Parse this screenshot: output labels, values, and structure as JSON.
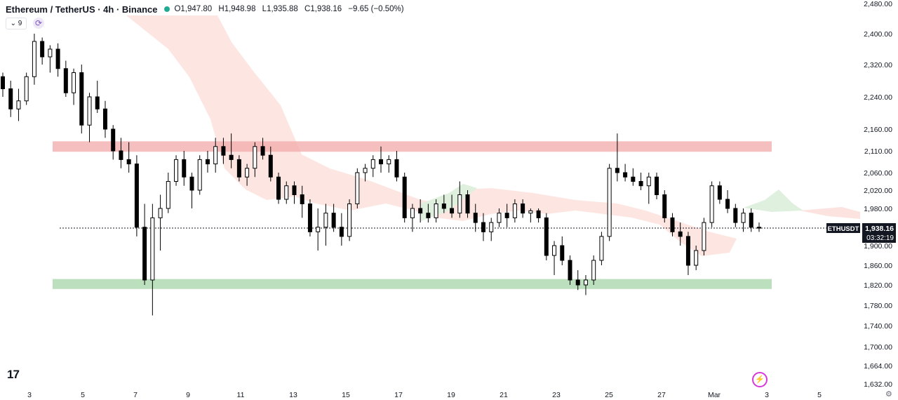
{
  "header": {
    "symbol": "Ethereum / TetherUS · 4h · Binance",
    "ohlc": {
      "open": "O1,947.80",
      "high": "H1,948.98",
      "low": "L1,935.88",
      "close": "C1,938.16",
      "change": "−9.65 (−0.50%)"
    }
  },
  "toolbar": {
    "indicator_count": "9"
  },
  "icons": {
    "collapse": "chevron-down-icon",
    "refresh": "refresh-icon",
    "logo": "tradingview-logo",
    "alert": "lightning-icon",
    "settings": "gear-icon"
  },
  "colors": {
    "up": "#ffffff",
    "down": "#000000",
    "resistance": "#f2a9a9",
    "support": "#a5d6a7",
    "cloud_bear": "#fde3df",
    "cloud_bull": "#dff0df",
    "price_label": "#131722"
  },
  "price_label": {
    "symbol": "ETHUSDT",
    "price": "1,938.16",
    "countdown": "03:32:19"
  },
  "chart_data": {
    "type": "candlestick",
    "y_ticks": [
      "2,480.00",
      "2,400.00",
      "2,320.00",
      "2,240.00",
      "2,160.00",
      "2,110.00",
      "2,060.00",
      "2,020.00",
      "1,980.00",
      "1,938.16",
      "1,900.00",
      "1,860.00",
      "1,820.00",
      "1,780.00",
      "1,740.00",
      "1,700.00",
      "1,664.00",
      "1,632.00"
    ],
    "x_ticks": [
      "3",
      "5",
      "7",
      "9",
      "11",
      "13",
      "15",
      "17",
      "19",
      "21",
      "23",
      "25",
      "27",
      "Mar",
      "3",
      "5"
    ],
    "current_price": 1938.16,
    "zones": [
      {
        "kind": "resistance",
        "from": 2108,
        "to": 2132
      },
      {
        "kind": "support",
        "from": 1812,
        "to": 1832
      }
    ],
    "candles": [
      [
        2290,
        2300,
        2240,
        2260
      ],
      [
        2260,
        2280,
        2190,
        2210
      ],
      [
        2210,
        2260,
        2180,
        2230
      ],
      [
        2230,
        2300,
        2220,
        2290
      ],
      [
        2290,
        2400,
        2270,
        2380
      ],
      [
        2380,
        2390,
        2320,
        2340
      ],
      [
        2340,
        2370,
        2300,
        2360
      ],
      [
        2360,
        2375,
        2290,
        2310
      ],
      [
        2310,
        2330,
        2240,
        2250
      ],
      [
        2250,
        2310,
        2220,
        2300
      ],
      [
        2300,
        2320,
        2150,
        2170
      ],
      [
        2170,
        2250,
        2130,
        2240
      ],
      [
        2240,
        2280,
        2200,
        2210
      ],
      [
        2210,
        2230,
        2140,
        2160
      ],
      [
        2160,
        2170,
        2090,
        2110
      ],
      [
        2110,
        2140,
        2070,
        2090
      ],
      [
        2090,
        2130,
        2060,
        2080
      ],
      [
        2080,
        2100,
        1920,
        1940
      ],
      [
        1940,
        1990,
        1820,
        1830
      ],
      [
        1830,
        1990,
        1760,
        1960
      ],
      [
        1960,
        2010,
        1890,
        1980
      ],
      [
        1980,
        2060,
        1970,
        2040
      ],
      [
        2040,
        2100,
        2030,
        2090
      ],
      [
        2090,
        2110,
        2030,
        2050
      ],
      [
        2050,
        2060,
        1980,
        2020
      ],
      [
        2020,
        2100,
        2010,
        2090
      ],
      [
        2090,
        2110,
        2060,
        2080
      ],
      [
        2080,
        2140,
        2060,
        2120
      ],
      [
        2120,
        2140,
        2080,
        2100
      ],
      [
        2100,
        2150,
        2070,
        2090
      ],
      [
        2090,
        2100,
        2040,
        2050
      ],
      [
        2050,
        2080,
        2030,
        2070
      ],
      [
        2070,
        2130,
        2050,
        2120
      ],
      [
        2120,
        2140,
        2090,
        2100
      ],
      [
        2100,
        2120,
        2040,
        2050
      ],
      [
        2050,
        2060,
        1990,
        2000
      ],
      [
        2000,
        2040,
        1990,
        2030
      ],
      [
        2030,
        2040,
        1990,
        2010
      ],
      [
        2010,
        2030,
        1960,
        1990
      ],
      [
        1990,
        2000,
        1920,
        1930
      ],
      [
        1930,
        1980,
        1890,
        1940
      ],
      [
        1940,
        1990,
        1900,
        1970
      ],
      [
        1970,
        1990,
        1930,
        1940
      ],
      [
        1940,
        1970,
        1900,
        1920
      ],
      [
        1920,
        2000,
        1910,
        1990
      ],
      [
        1990,
        2070,
        1980,
        2060
      ],
      [
        2060,
        2080,
        2040,
        2070
      ],
      [
        2070,
        2100,
        2050,
        2090
      ],
      [
        2090,
        2120,
        2060,
        2080
      ],
      [
        2080,
        2100,
        2060,
        2090
      ],
      [
        2090,
        2110,
        2040,
        2050
      ],
      [
        2050,
        2060,
        1950,
        1960
      ],
      [
        1960,
        1990,
        1930,
        1980
      ],
      [
        1980,
        2000,
        1950,
        1970
      ],
      [
        1970,
        1990,
        1950,
        1960
      ],
      [
        1960,
        2000,
        1950,
        1990
      ],
      [
        1990,
        2010,
        1970,
        1980
      ],
      [
        1980,
        2010,
        1960,
        1970
      ],
      [
        1970,
        2040,
        1960,
        2010
      ],
      [
        2010,
        2020,
        1960,
        1970
      ],
      [
        1970,
        1990,
        1930,
        1950
      ],
      [
        1950,
        1970,
        1910,
        1930
      ],
      [
        1930,
        1960,
        1910,
        1950
      ],
      [
        1950,
        1980,
        1940,
        1970
      ],
      [
        1970,
        1990,
        1940,
        1960
      ],
      [
        1960,
        2000,
        1950,
        1990
      ],
      [
        1990,
        2000,
        1960,
        1970
      ],
      [
        1970,
        1980,
        1950,
        1975
      ],
      [
        1975,
        1980,
        1950,
        1960
      ],
      [
        1960,
        1970,
        1870,
        1880
      ],
      [
        1880,
        1910,
        1840,
        1900
      ],
      [
        1900,
        1920,
        1860,
        1870
      ],
      [
        1870,
        1880,
        1820,
        1830
      ],
      [
        1830,
        1850,
        1810,
        1820
      ],
      [
        1820,
        1840,
        1800,
        1830
      ],
      [
        1830,
        1880,
        1820,
        1870
      ],
      [
        1870,
        1930,
        1860,
        1920
      ],
      [
        1920,
        2080,
        1910,
        2070
      ],
      [
        2070,
        2150,
        2040,
        2060
      ],
      [
        2060,
        2080,
        2040,
        2050
      ],
      [
        2050,
        2070,
        2030,
        2040
      ],
      [
        2040,
        2060,
        2020,
        2030
      ],
      [
        2030,
        2060,
        1990,
        2050
      ],
      [
        2050,
        2060,
        2000,
        2010
      ],
      [
        2010,
        2020,
        1950,
        1960
      ],
      [
        1960,
        1970,
        1920,
        1930
      ],
      [
        1930,
        1950,
        1900,
        1920
      ],
      [
        1920,
        1930,
        1840,
        1860
      ],
      [
        1860,
        1900,
        1850,
        1890
      ],
      [
        1890,
        1960,
        1880,
        1950
      ],
      [
        1950,
        2040,
        1940,
        2030
      ],
      [
        2030,
        2040,
        1990,
        2000
      ],
      [
        2000,
        2020,
        1970,
        1980
      ],
      [
        1980,
        1990,
        1940,
        1950
      ],
      [
        1950,
        1980,
        1930,
        1970
      ],
      [
        1970,
        1980,
        1930,
        1940
      ],
      [
        1940,
        1950,
        1930,
        1938
      ]
    ]
  }
}
